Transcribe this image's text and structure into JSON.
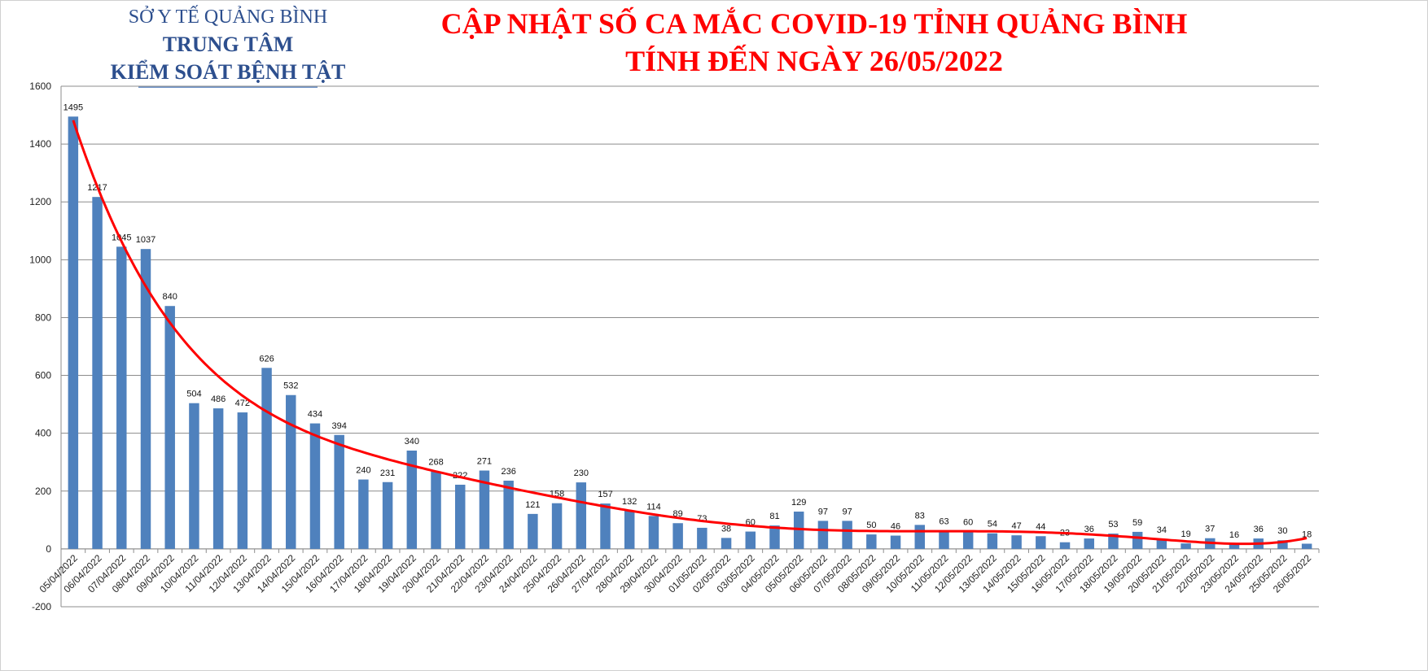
{
  "header": {
    "org_line1": "SỞ Y TẾ QUẢNG BÌNH",
    "org_line2": "TRUNG TÂM",
    "org_line3": "KIỂM SOÁT BỆNH TẬT",
    "title_line1": "CẬP NHẬT SỐ CA MẮC COVID-19 TỈNH QUẢNG BÌNH",
    "title_line2": "TÍNH ĐẾN NGÀY 26/05/2022"
  },
  "chart_data": {
    "type": "bar",
    "title": "",
    "xlabel": "",
    "ylabel": "",
    "ylim": [
      -200,
      1600
    ],
    "yticks": [
      -200,
      0,
      200,
      400,
      600,
      800,
      1000,
      1200,
      1400,
      1600
    ],
    "grid": true,
    "bar_color": "#4f81bd",
    "trendline_color": "#ff0000",
    "trendline": "polynomial",
    "categories": [
      "05/04/2022",
      "06/04/2022",
      "07/04/2022",
      "08/04/2022",
      "09/04/2022",
      "10/04/2022",
      "11/04/2022",
      "12/04/2022",
      "13/04/2022",
      "14/04/2022",
      "15/04/2022",
      "16/04/2022",
      "17/04/2022",
      "18/04/2022",
      "19/04/2022",
      "20/04/2022",
      "21/04/2022",
      "22/04/2022",
      "23/04/2022",
      "24/04/2022",
      "25/04/2022",
      "26/04/2022",
      "27/04/2022",
      "28/04/2022",
      "29/04/2022",
      "30/04/2022",
      "01/05/2022",
      "02/05/2022",
      "03/05/2022",
      "04/05/2022",
      "05/05/2022",
      "06/05/2022",
      "07/05/2022",
      "08/05/2022",
      "09/05/2022",
      "10/05/2022",
      "11/05/2022",
      "12/05/2022",
      "13/05/2022",
      "14/05/2022",
      "15/05/2022",
      "16/05/2022",
      "17/05/2022",
      "18/05/2022",
      "19/05/2022",
      "20/05/2022",
      "21/05/2022",
      "22/05/2022",
      "23/05/2022",
      "24/05/2022",
      "25/05/2022",
      "26/05/2022"
    ],
    "values": [
      1495,
      1217,
      1045,
      1037,
      840,
      504,
      486,
      472,
      626,
      532,
      434,
      394,
      240,
      231,
      340,
      268,
      222,
      271,
      236,
      121,
      158,
      230,
      157,
      132,
      114,
      89,
      73,
      38,
      60,
      81,
      129,
      97,
      97,
      50,
      46,
      83,
      63,
      60,
      54,
      47,
      44,
      23,
      36,
      53,
      59,
      34,
      19,
      37,
      16,
      36,
      30,
      18
    ]
  }
}
